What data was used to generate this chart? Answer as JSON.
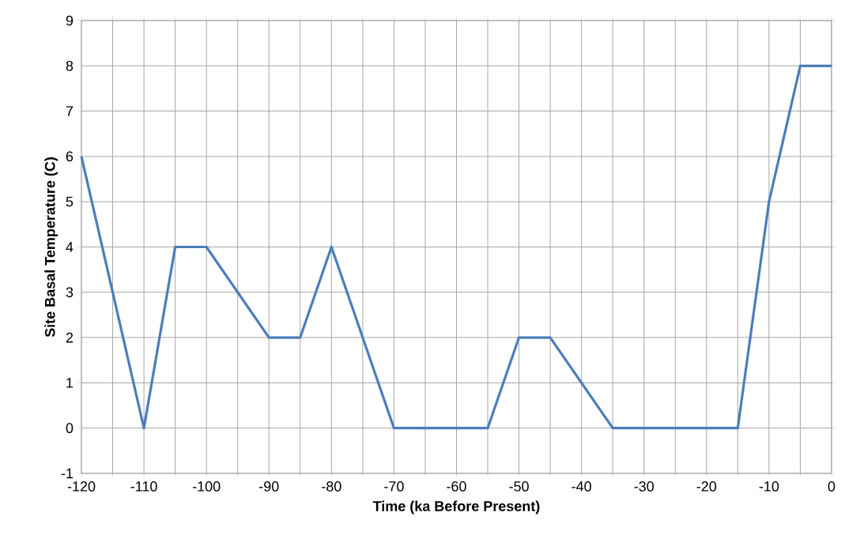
{
  "chart_data": {
    "type": "line",
    "xlabel": "Time (ka Before Present)",
    "ylabel": "Site Basal Temperature (C)",
    "x": [
      -120,
      -110,
      -105,
      -100,
      -90,
      -85,
      -80,
      -70,
      -55,
      -50,
      -45,
      -35,
      -15,
      -10,
      -5,
      0
    ],
    "series": [
      {
        "color": "#4a7ebb",
        "values": [
          6,
          0,
          4,
          4,
          2,
          2,
          4,
          0,
          0,
          2,
          2,
          0,
          0,
          5,
          8,
          8
        ]
      }
    ],
    "xlim": [
      -120,
      0
    ],
    "ylim": [
      -1,
      9
    ],
    "xticks": [
      -120,
      {
        "value": -115,
        "label": null
      },
      -110,
      {
        "value": -105,
        "label": null
      },
      -100,
      {
        "value": -95,
        "label": null
      },
      -90,
      {
        "value": -85,
        "label": null
      },
      -80,
      {
        "value": -75,
        "label": null
      },
      -70,
      {
        "value": -65,
        "label": null
      },
      -60,
      {
        "value": -55,
        "label": null
      },
      -50,
      {
        "value": -45,
        "label": null
      },
      -40,
      {
        "value": -35,
        "label": null
      },
      -30,
      {
        "value": -25,
        "label": null
      },
      -20,
      {
        "value": -15,
        "label": null
      },
      -10,
      {
        "value": -5,
        "label": null
      },
      0
    ],
    "yticks": [
      -1,
      0,
      1,
      2,
      3,
      4,
      5,
      6,
      7,
      8,
      9
    ],
    "grid": true,
    "marker": "none",
    "line_style": "solid"
  }
}
